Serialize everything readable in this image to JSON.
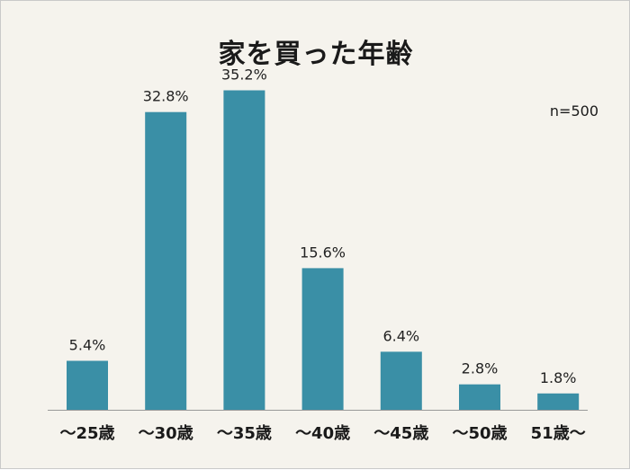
{
  "header": {
    "title": "家を買った年齢",
    "sample_note": "n=500"
  },
  "colors": {
    "background": "#f5f3ed",
    "bar": "#3a8fa6",
    "axis": "#999999"
  },
  "chart_data": {
    "type": "bar",
    "title": "家を買った年齢",
    "categories": [
      "～25歳",
      "～30歳",
      "～35歳",
      "～40歳",
      "～45歳",
      "～50歳",
      "51歳～"
    ],
    "values": [
      5.4,
      32.8,
      35.2,
      15.6,
      6.4,
      2.8,
      1.8
    ],
    "value_labels": [
      "5.4%",
      "32.8%",
      "35.2%",
      "15.6%",
      "6.4%",
      "2.8%",
      "1.8%"
    ],
    "unit": "%",
    "ylim": [
      0,
      40
    ],
    "grid": false,
    "legend": "none"
  }
}
